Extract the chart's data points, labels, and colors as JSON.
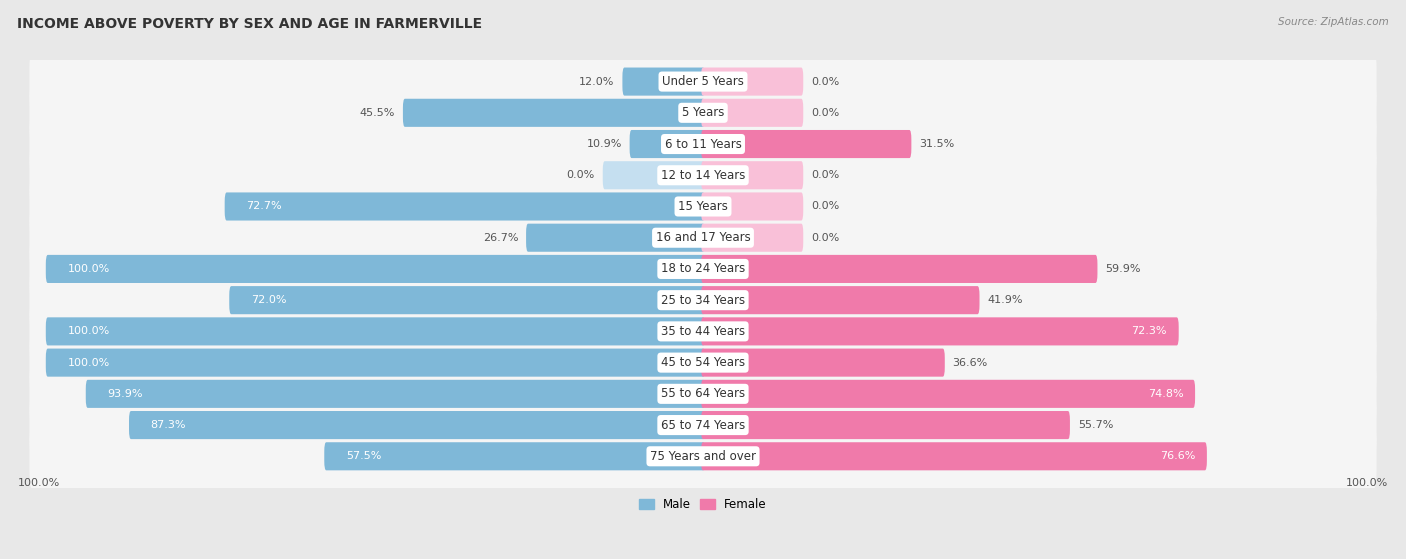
{
  "title": "INCOME ABOVE POVERTY BY SEX AND AGE IN FARMERVILLE",
  "source": "Source: ZipAtlas.com",
  "categories": [
    "Under 5 Years",
    "5 Years",
    "6 to 11 Years",
    "12 to 14 Years",
    "15 Years",
    "16 and 17 Years",
    "18 to 24 Years",
    "25 to 34 Years",
    "35 to 44 Years",
    "45 to 54 Years",
    "55 to 64 Years",
    "65 to 74 Years",
    "75 Years and over"
  ],
  "male": [
    12.0,
    45.5,
    10.9,
    0.0,
    72.7,
    26.7,
    100.0,
    72.0,
    100.0,
    100.0,
    93.9,
    87.3,
    57.5
  ],
  "female": [
    0.0,
    0.0,
    31.5,
    0.0,
    0.0,
    0.0,
    59.9,
    41.9,
    72.3,
    36.6,
    74.8,
    55.7,
    76.6
  ],
  "male_color": "#7fb8d8",
  "female_color": "#f07aaa",
  "male_color_light": "#c5dff0",
  "female_color_light": "#f9c0d8",
  "bg_color": "#e8e8e8",
  "row_bg_color": "#f5f5f5",
  "label_pill_color": "#ffffff",
  "title_fontsize": 10,
  "label_fontsize": 8,
  "value_fontsize": 8,
  "max_value": 100.0
}
